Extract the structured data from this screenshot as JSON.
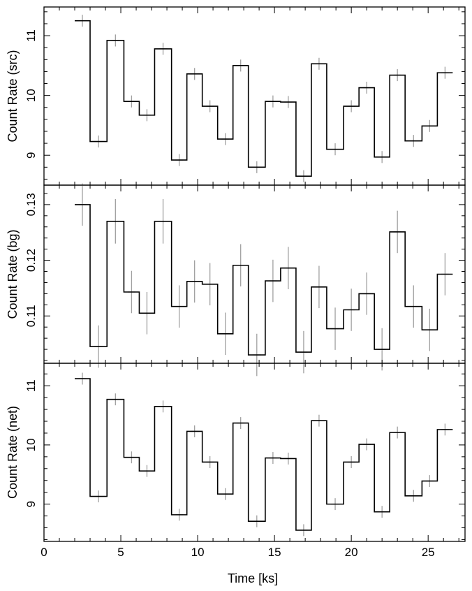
{
  "chart_data": {
    "type": "line",
    "style": "step light curve with error bars",
    "xlabel": "Time [ks]",
    "xlim": [
      0,
      27.4
    ],
    "x_ticks": [
      0,
      5,
      10,
      15,
      20,
      25
    ],
    "x_tick_labels": [
      "0",
      "5",
      "10",
      "15",
      "20",
      "25"
    ],
    "bin_edges": [
      2.0,
      3.0,
      4.1,
      5.2,
      6.2,
      7.2,
      8.3,
      9.3,
      10.3,
      11.3,
      12.3,
      13.3,
      14.4,
      15.4,
      16.4,
      17.4,
      18.4,
      19.5,
      20.5,
      21.5,
      22.5,
      23.5,
      24.6,
      25.6,
      26.6
    ],
    "panels": [
      {
        "ylabel": "Count Rate (src)",
        "ylim": [
          8.5,
          11.48
        ],
        "y_ticks": [
          9,
          10,
          11
        ],
        "y_tick_labels": [
          "9",
          "10",
          "11"
        ],
        "values": [
          11.25,
          9.23,
          10.92,
          9.9,
          9.67,
          10.78,
          8.92,
          10.36,
          9.82,
          9.27,
          10.5,
          8.8,
          9.9,
          9.89,
          8.65,
          10.53,
          9.1,
          9.82,
          10.13,
          8.97,
          10.34,
          9.24,
          9.49,
          10.38
        ],
        "errors": [
          0.1,
          0.1,
          0.1,
          0.1,
          0.1,
          0.1,
          0.1,
          0.1,
          0.1,
          0.1,
          0.1,
          0.1,
          0.1,
          0.1,
          0.1,
          0.1,
          0.1,
          0.1,
          0.1,
          0.1,
          0.1,
          0.1,
          0.1,
          0.1
        ]
      },
      {
        "ylabel": "Count Rate (bg)",
        "ylim": [
          0.1015,
          0.1335
        ],
        "y_ticks": [
          0.11,
          0.12,
          0.13
        ],
        "y_tick_labels": [
          "0.11",
          "0.12",
          "0.13"
        ],
        "values": [
          0.13,
          0.1045,
          0.127,
          0.1143,
          0.1105,
          0.127,
          0.1117,
          0.1162,
          0.1157,
          0.1068,
          0.1191,
          0.103,
          0.1163,
          0.1186,
          0.1035,
          0.1152,
          0.1077,
          0.1111,
          0.114,
          0.104,
          0.1251,
          0.1117,
          0.1075,
          0.1175
        ],
        "errors": [
          0.0038,
          0.0038,
          0.004,
          0.0038,
          0.0038,
          0.004,
          0.0038,
          0.0038,
          0.0038,
          0.0038,
          0.0038,
          0.0038,
          0.0038,
          0.0038,
          0.0038,
          0.0038,
          0.0038,
          0.0038,
          0.0038,
          0.0038,
          0.0038,
          0.0038,
          0.0038,
          0.0038
        ]
      },
      {
        "ylabel": "Count Rate (net)",
        "ylim": [
          8.37,
          11.38
        ],
        "y_ticks": [
          9,
          10,
          11
        ],
        "y_tick_labels": [
          "9",
          "10",
          "11"
        ],
        "values": [
          11.12,
          9.13,
          10.77,
          9.79,
          9.56,
          10.65,
          8.82,
          10.23,
          9.71,
          9.17,
          10.37,
          8.71,
          9.78,
          9.77,
          8.56,
          10.41,
          9.0,
          9.71,
          10.01,
          8.87,
          10.21,
          9.14,
          9.39,
          10.26
        ],
        "errors": [
          0.1,
          0.1,
          0.1,
          0.1,
          0.1,
          0.1,
          0.1,
          0.1,
          0.1,
          0.1,
          0.1,
          0.1,
          0.1,
          0.1,
          0.1,
          0.1,
          0.1,
          0.1,
          0.1,
          0.1,
          0.1,
          0.1,
          0.1,
          0.1
        ]
      }
    ],
    "colors": {
      "step_line": "#000000",
      "error_bars": "#a0a0a0",
      "frame": "#000000"
    }
  }
}
